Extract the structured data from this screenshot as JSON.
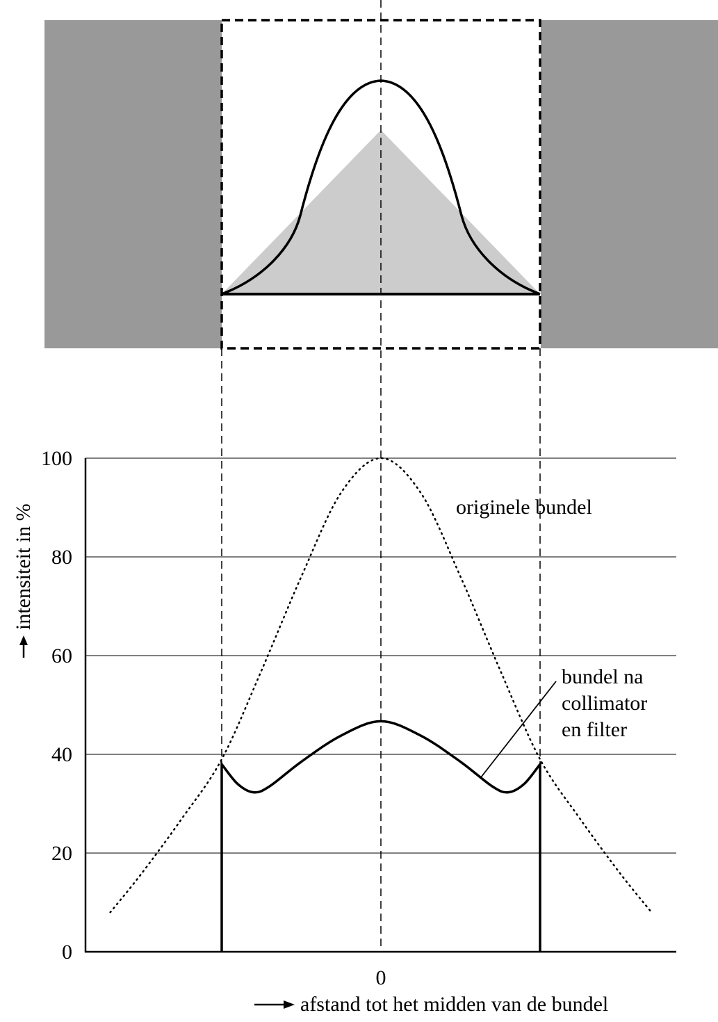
{
  "colors": {
    "ink": "#000000",
    "gray_block": "#999999",
    "light_fill": "#cccccc",
    "grid": "#000000"
  },
  "icons": {
    "axis_arrow": "right-arrow-icon"
  },
  "chart_data": {
    "type": "line",
    "xlabel": "afstand tot het midden van de bundel",
    "ylabel": "intensiteit in %",
    "ylim": [
      0,
      100
    ],
    "yticks": [
      "0",
      "20",
      "40",
      "60",
      "80",
      "100"
    ],
    "xticks": [
      "0"
    ],
    "grid": true,
    "x_is_unscaled": true,
    "collimator_edges": [
      -1,
      1
    ],
    "series": [
      {
        "name": "originele bundel",
        "style": "dotted",
        "x": [
          -1.7,
          -1.5,
          -1.25,
          -1.0,
          -0.75,
          -0.5,
          -0.25,
          0,
          0.25,
          0.5,
          0.75,
          1.0,
          1.25,
          1.5,
          1.7
        ],
        "y": [
          8,
          16,
          27,
          39,
          57,
          76,
          93,
          100,
          93,
          76,
          57,
          39,
          27,
          16,
          8
        ]
      },
      {
        "name": "bundel na collimator en filter",
        "style": "solid",
        "x": [
          -1.0,
          -1.0,
          -0.9,
          -0.8,
          -0.7,
          -0.5,
          -0.25,
          0,
          0.25,
          0.5,
          0.7,
          0.8,
          0.9,
          1.0,
          1.0
        ],
        "y": [
          0,
          38,
          34,
          32.3,
          33.5,
          38.5,
          43.8,
          46.7,
          43.8,
          38.5,
          33.5,
          32.3,
          34,
          38,
          0
        ]
      }
    ]
  }
}
